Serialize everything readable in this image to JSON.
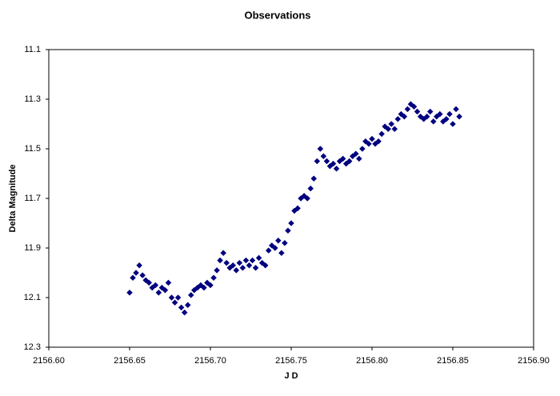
{
  "chart_data": {
    "type": "scatter",
    "title": "Observations",
    "x_label": "J D",
    "y_label": "Delta Magnitude",
    "color": "#000080",
    "marker": "diamond",
    "xlim": [
      2156.6,
      2156.9
    ],
    "xticks": [
      {
        "value": 2156.6,
        "label": "2156.60"
      },
      2156.65,
      {
        "value": 2156.7,
        "label": "2156.70"
      },
      2156.75,
      {
        "value": 2156.8,
        "label": "2156.80"
      },
      2156.85,
      {
        "value": 2156.9,
        "label": "2156.90"
      }
    ],
    "ylim": [
      12.3,
      11.1
    ],
    "yticks": [
      11.1,
      11.3,
      11.5,
      11.7,
      11.9,
      12.1,
      12.3
    ],
    "x": [
      2156.65,
      2156.652,
      2156.654,
      2156.656,
      2156.658,
      2156.66,
      2156.662,
      2156.664,
      2156.666,
      2156.668,
      2156.67,
      2156.672,
      2156.674,
      2156.676,
      2156.678,
      2156.68,
      2156.682,
      2156.684,
      2156.686,
      2156.688,
      2156.69,
      2156.692,
      2156.694,
      2156.696,
      2156.698,
      2156.7,
      2156.702,
      2156.704,
      2156.706,
      2156.708,
      2156.71,
      2156.712,
      2156.714,
      2156.716,
      2156.718,
      2156.72,
      2156.722,
      2156.724,
      2156.726,
      2156.728,
      2156.73,
      2156.732,
      2156.734,
      2156.736,
      2156.738,
      2156.74,
      2156.742,
      2156.744,
      2156.746,
      2156.748,
      2156.75,
      2156.752,
      2156.754,
      2156.756,
      2156.758,
      2156.76,
      2156.762,
      2156.764,
      2156.766,
      2156.768,
      2156.77,
      2156.772,
      2156.774,
      2156.776,
      2156.778,
      2156.78,
      2156.782,
      2156.784,
      2156.786,
      2156.788,
      2156.79,
      2156.792,
      2156.794,
      2156.796,
      2156.798,
      2156.8,
      2156.802,
      2156.804,
      2156.806,
      2156.808,
      2156.81,
      2156.812,
      2156.814,
      2156.816,
      2156.818,
      2156.82,
      2156.822,
      2156.824,
      2156.826,
      2156.828,
      2156.83,
      2156.832,
      2156.834,
      2156.836,
      2156.838,
      2156.84,
      2156.842,
      2156.844,
      2156.846,
      2156.848,
      2156.85,
      2156.852,
      2156.854
    ],
    "y": [
      12.08,
      12.02,
      12.0,
      11.97,
      12.01,
      12.03,
      12.04,
      12.06,
      12.05,
      12.08,
      12.06,
      12.07,
      12.04,
      12.1,
      12.12,
      12.1,
      12.14,
      12.16,
      12.13,
      12.09,
      12.07,
      12.06,
      12.05,
      12.06,
      12.04,
      12.05,
      12.02,
      11.99,
      11.95,
      11.92,
      11.96,
      11.98,
      11.97,
      11.99,
      11.96,
      11.98,
      11.95,
      11.97,
      11.95,
      11.98,
      11.94,
      11.96,
      11.97,
      11.91,
      11.89,
      11.9,
      11.87,
      11.92,
      11.88,
      11.83,
      11.8,
      11.75,
      11.74,
      11.7,
      11.69,
      11.7,
      11.66,
      11.62,
      11.55,
      11.5,
      11.53,
      11.55,
      11.57,
      11.56,
      11.58,
      11.55,
      11.54,
      11.56,
      11.55,
      11.53,
      11.52,
      11.54,
      11.5,
      11.47,
      11.48,
      11.46,
      11.48,
      11.47,
      11.44,
      11.41,
      11.42,
      11.4,
      11.42,
      11.38,
      11.36,
      11.37,
      11.34,
      11.32,
      11.33,
      11.35,
      11.37,
      11.38,
      11.37,
      11.35,
      11.39,
      11.37,
      11.36,
      11.39,
      11.38,
      11.36,
      11.4,
      11.34,
      11.37
    ]
  }
}
